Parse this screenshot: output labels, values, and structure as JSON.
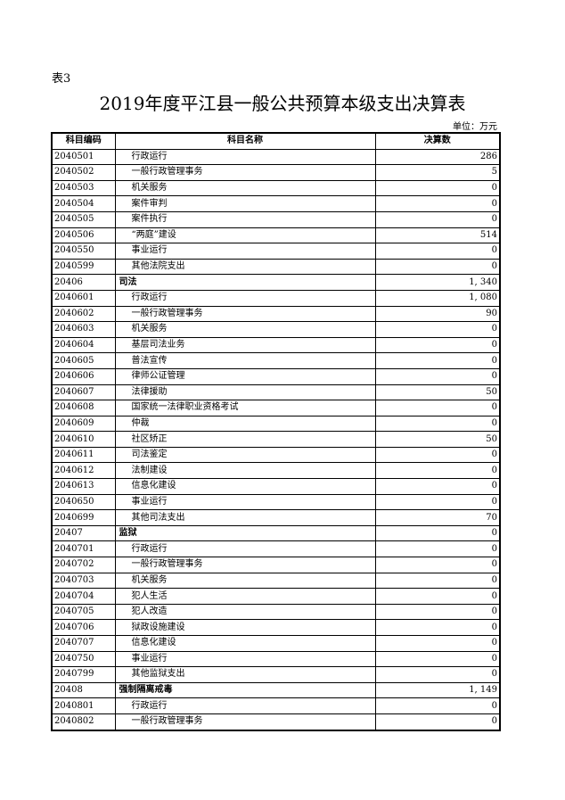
{
  "doc": {
    "tag": "表3",
    "title": "2019年度平江县一般公共预算本级支出决算表",
    "unit": "单位：万元"
  },
  "table": {
    "headers": [
      "科目编码",
      "科目名称",
      "决算数"
    ],
    "rows": [
      {
        "code": "2040501",
        "name": "行政运行",
        "amount": "286",
        "bold": false
      },
      {
        "code": "2040502",
        "name": "一般行政管理事务",
        "amount": "5",
        "bold": false
      },
      {
        "code": "2040503",
        "name": "机关服务",
        "amount": "0",
        "bold": false
      },
      {
        "code": "2040504",
        "name": "案件审判",
        "amount": "0",
        "bold": false
      },
      {
        "code": "2040505",
        "name": "案件执行",
        "amount": "0",
        "bold": false
      },
      {
        "code": "2040506",
        "name": "“两庭”建设",
        "amount": "514",
        "bold": false
      },
      {
        "code": "2040550",
        "name": "事业运行",
        "amount": "0",
        "bold": false
      },
      {
        "code": "2040599",
        "name": "其他法院支出",
        "amount": "0",
        "bold": false
      },
      {
        "code": "20406",
        "name": "司法",
        "amount": "1, 340",
        "bold": true
      },
      {
        "code": "2040601",
        "name": "行政运行",
        "amount": "1, 080",
        "bold": false
      },
      {
        "code": "2040602",
        "name": "一般行政管理事务",
        "amount": "90",
        "bold": false
      },
      {
        "code": "2040603",
        "name": "机关服务",
        "amount": "0",
        "bold": false
      },
      {
        "code": "2040604",
        "name": "基层司法业务",
        "amount": "0",
        "bold": false
      },
      {
        "code": "2040605",
        "name": "普法宣传",
        "amount": "0",
        "bold": false
      },
      {
        "code": "2040606",
        "name": "律师公证管理",
        "amount": "0",
        "bold": false
      },
      {
        "code": "2040607",
        "name": "法律援助",
        "amount": "50",
        "bold": false
      },
      {
        "code": "2040608",
        "name": "国家统一法律职业资格考试",
        "amount": "0",
        "bold": false
      },
      {
        "code": "2040609",
        "name": "仲裁",
        "amount": "0",
        "bold": false
      },
      {
        "code": "2040610",
        "name": "社区矫正",
        "amount": "50",
        "bold": false
      },
      {
        "code": "2040611",
        "name": "司法鉴定",
        "amount": "0",
        "bold": false
      },
      {
        "code": "2040612",
        "name": "法制建设",
        "amount": "0",
        "bold": false
      },
      {
        "code": "2040613",
        "name": "信息化建设",
        "amount": "0",
        "bold": false
      },
      {
        "code": "2040650",
        "name": "事业运行",
        "amount": "0",
        "bold": false
      },
      {
        "code": "2040699",
        "name": "其他司法支出",
        "amount": "70",
        "bold": false
      },
      {
        "code": "20407",
        "name": "监狱",
        "amount": "0",
        "bold": true
      },
      {
        "code": "2040701",
        "name": "行政运行",
        "amount": "0",
        "bold": false
      },
      {
        "code": "2040702",
        "name": "一般行政管理事务",
        "amount": "0",
        "bold": false
      },
      {
        "code": "2040703",
        "name": "机关服务",
        "amount": "0",
        "bold": false
      },
      {
        "code": "2040704",
        "name": "犯人生活",
        "amount": "0",
        "bold": false
      },
      {
        "code": "2040705",
        "name": "犯人改造",
        "amount": "0",
        "bold": false
      },
      {
        "code": "2040706",
        "name": "狱政设施建设",
        "amount": "0",
        "bold": false
      },
      {
        "code": "2040707",
        "name": "信息化建设",
        "amount": "0",
        "bold": false
      },
      {
        "code": "2040750",
        "name": "事业运行",
        "amount": "0",
        "bold": false
      },
      {
        "code": "2040799",
        "name": "其他监狱支出",
        "amount": "0",
        "bold": false
      },
      {
        "code": "20408",
        "name": "强制隔离戒毒",
        "amount": "1, 149",
        "bold": true
      },
      {
        "code": "2040801",
        "name": "行政运行",
        "amount": "0",
        "bold": false
      },
      {
        "code": "2040802",
        "name": "一般行政管理事务",
        "amount": "0",
        "bold": false
      }
    ]
  }
}
